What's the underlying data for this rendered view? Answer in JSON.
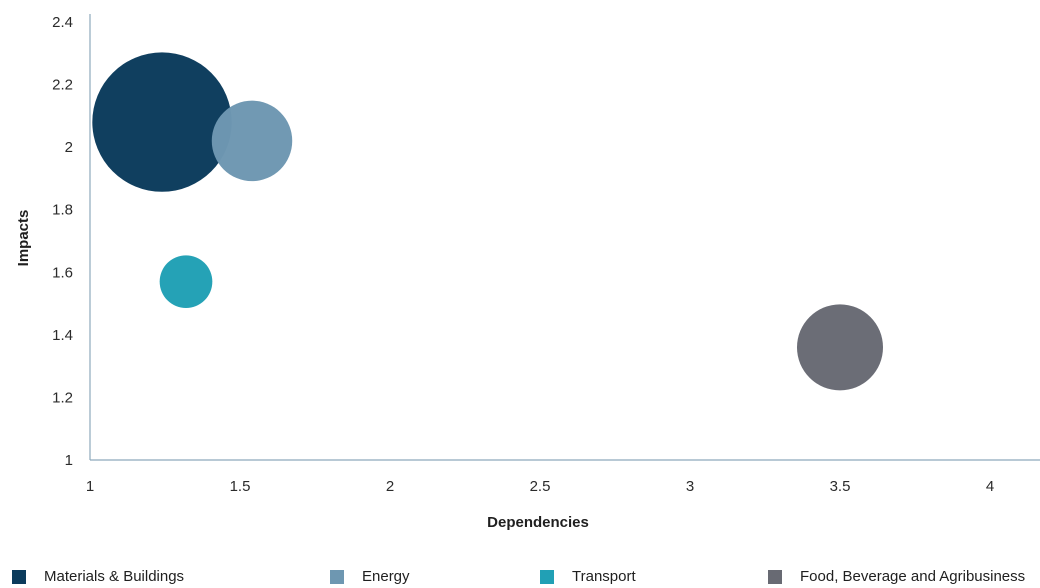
{
  "chart_data": {
    "type": "bubble",
    "title": "",
    "xlabel": "Dependencies",
    "ylabel": "Impacts",
    "xlim": [
      1,
      4
    ],
    "ylim": [
      1,
      2.4
    ],
    "xticks": [
      "1",
      "1.5",
      "2",
      "2.5",
      "3",
      "3.5",
      "4"
    ],
    "yticks": [
      "1",
      "1.2",
      "1.4",
      "1.6",
      "1.8",
      "2",
      "2.2",
      "2.4"
    ],
    "grid": false,
    "legend_position": "bottom",
    "series": [
      {
        "name": "Materials & Buildings",
        "x": 1.24,
        "y": 2.08,
        "size": 4.2,
        "color": "#0b3b5c"
      },
      {
        "name": "Energy",
        "x": 1.54,
        "y": 2.02,
        "size": 1.4,
        "color": "#6e97b1"
      },
      {
        "name": "Transport",
        "x": 1.32,
        "y": 1.57,
        "size": 0.6,
        "color": "#21a0b5"
      },
      {
        "name": "Food, Beverage and Agribusiness",
        "x": 3.5,
        "y": 1.36,
        "size": 1.6,
        "color": "#686a73"
      }
    ]
  }
}
